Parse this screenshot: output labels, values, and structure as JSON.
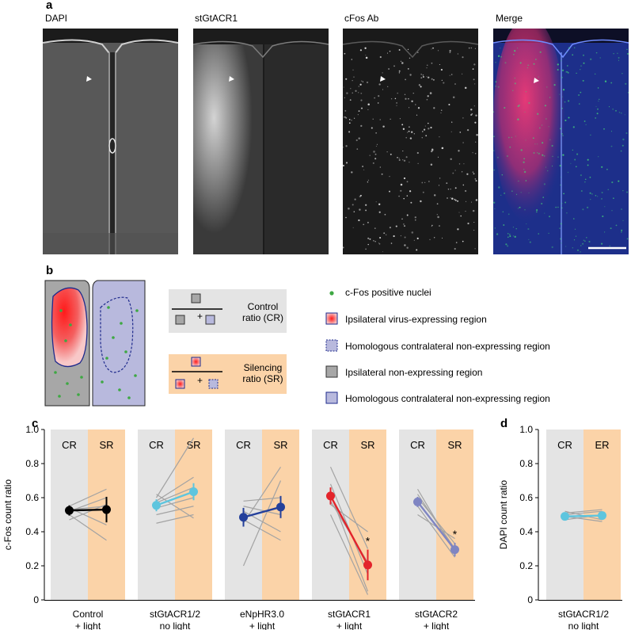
{
  "panel_a": {
    "letter": "a",
    "labels": [
      {
        "text": "DAPI",
        "color": "#3a5dae"
      },
      {
        "text": "stGtACR1",
        "color": "#e0212b"
      },
      {
        "text": "cFos Ab",
        "color": "#1ea54b"
      },
      {
        "text": "Merge",
        "color": "#000000"
      }
    ]
  },
  "panel_b": {
    "letter": "b",
    "control_label_1": "Control",
    "control_label_2": "ratio (CR)",
    "silencing_label_1": "Silencing",
    "silencing_label_2": "ratio (SR)",
    "plus": "+",
    "legend": [
      "c-Fos positive nuclei",
      "Ipsilateral virus-expressing region",
      "Homologous contralateral non-expressing region",
      "Ipsilateral non-expressing region",
      "Homologous contralateral non-expressing region"
    ]
  },
  "panel_c": {
    "letter": "c"
  },
  "panel_d": {
    "letter": "d"
  },
  "colors": {
    "cr_bg": "#e4e4e4",
    "sr_bg": "#fbd3a8",
    "light_purple": "#b7b8dc",
    "gray": "#a3a3a3"
  },
  "chart_data": [
    {
      "type": "line",
      "ylabel": "c-Fos count ratio",
      "ylim": [
        0,
        1.0
      ],
      "yticks": [
        "0",
        "0.2",
        "0.4",
        "0.6",
        "0.8",
        "1.0"
      ],
      "groups": [
        {
          "name": "Control\n+ light",
          "col_labels": [
            "CR",
            "SR"
          ],
          "mean": [
            0.525,
            0.53
          ],
          "err": [
            0.03,
            0.075
          ],
          "color": "#000000",
          "individual": [
            [
              0.55,
              0.65
            ],
            [
              0.5,
              0.35
            ],
            [
              0.47,
              0.56
            ],
            [
              0.54,
              0.44
            ],
            [
              0.52,
              0.6
            ],
            [
              0.53,
              0.55
            ]
          ],
          "significant": false
        },
        {
          "name": "stGtACR1/2\nno light",
          "col_labels": [
            "CR",
            "SR"
          ],
          "mean": [
            0.555,
            0.635
          ],
          "err": [
            0.035,
            0.05
          ],
          "color": "#5ec5de",
          "individual": [
            [
              0.6,
              0.95
            ],
            [
              0.58,
              0.72
            ],
            [
              0.54,
              0.6
            ],
            [
              0.5,
              0.55
            ],
            [
              0.45,
              0.5
            ],
            [
              0.57,
              0.66
            ],
            [
              0.62,
              0.48
            ]
          ],
          "significant": false
        },
        {
          "name": "eNpHR3.0\n+ light",
          "col_labels": [
            "CR",
            "SR"
          ],
          "mean": [
            0.485,
            0.545
          ],
          "err": [
            0.055,
            0.065
          ],
          "color": "#24409b",
          "individual": [
            [
              0.45,
              0.78
            ],
            [
              0.2,
              0.7
            ],
            [
              0.52,
              0.4
            ],
            [
              0.58,
              0.6
            ],
            [
              0.47,
              0.35
            ],
            [
              0.55,
              0.5
            ]
          ],
          "significant": false
        },
        {
          "name": "stGtACR1\n+ light",
          "col_labels": [
            "CR",
            "SR"
          ],
          "mean": [
            0.61,
            0.205
          ],
          "err": [
            0.05,
            0.09
          ],
          "color": "#e3242b",
          "individual": [
            [
              0.78,
              0.3
            ],
            [
              0.68,
              0.15
            ],
            [
              0.62,
              0.05
            ],
            [
              0.56,
              0.4
            ],
            [
              0.5,
              0.03
            ],
            [
              0.58,
              0.22
            ]
          ],
          "significant": true,
          "star": "*"
        },
        {
          "name": "stGtACR2\n+ light",
          "col_labels": [
            "CR",
            "SR"
          ],
          "mean": [
            0.575,
            0.295
          ],
          "err": [
            0.03,
            0.04
          ],
          "color": "#7f85c2",
          "individual": [
            [
              0.65,
              0.28
            ],
            [
              0.62,
              0.3
            ],
            [
              0.55,
              0.25
            ],
            [
              0.5,
              0.36
            ],
            [
              0.6,
              0.33
            ]
          ],
          "significant": true,
          "star": "*"
        }
      ]
    },
    {
      "type": "line",
      "ylabel": "DAPI count ratio",
      "ylim": [
        0,
        1.0
      ],
      "yticks": [
        "0",
        "0.2",
        "0.4",
        "0.6",
        "0.8",
        "1.0"
      ],
      "groups": [
        {
          "name": "stGtACR1/2\nno light",
          "col_labels": [
            "CR",
            "ER"
          ],
          "mean": [
            0.49,
            0.495
          ],
          "err": [
            0.01,
            0.01
          ],
          "color": "#5ec5de",
          "individual": [
            [
              0.52,
              0.47
            ],
            [
              0.5,
              0.52
            ],
            [
              0.47,
              0.5
            ],
            [
              0.49,
              0.46
            ],
            [
              0.51,
              0.53
            ]
          ],
          "significant": false
        }
      ]
    }
  ]
}
